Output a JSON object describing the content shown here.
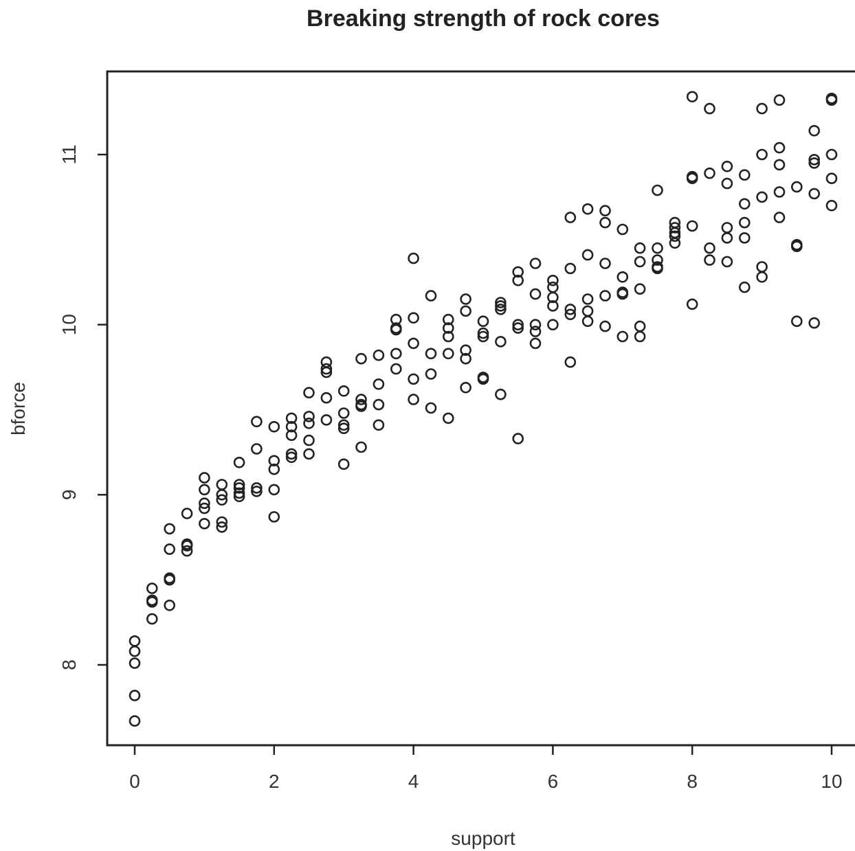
{
  "chart_data": {
    "type": "scatter",
    "title": "Breaking strength of rock cores",
    "xlabel": "support",
    "ylabel": "bforce",
    "xlim": [
      -0.4,
      10.4
    ],
    "ylim": [
      7.55,
      11.5
    ],
    "x_ticks": [
      0,
      2,
      4,
      6,
      8,
      10
    ],
    "y_ticks": [
      8,
      9,
      10,
      11
    ],
    "grid": false,
    "legend": "none",
    "marker": "open-circle",
    "color": "#222222",
    "points": [
      [
        0,
        8.14
      ],
      [
        0,
        8.08
      ],
      [
        0,
        8.01
      ],
      [
        0,
        7.82
      ],
      [
        0,
        7.67
      ],
      [
        0.25,
        8.45
      ],
      [
        0.25,
        8.38
      ],
      [
        0.25,
        8.37
      ],
      [
        0.25,
        8.27
      ],
      [
        0.5,
        8.8
      ],
      [
        0.5,
        8.68
      ],
      [
        0.5,
        8.51
      ],
      [
        0.5,
        8.5
      ],
      [
        0.5,
        8.35
      ],
      [
        0.75,
        8.89
      ],
      [
        0.75,
        8.71
      ],
      [
        0.75,
        8.7
      ],
      [
        0.75,
        8.67
      ],
      [
        1,
        9.1
      ],
      [
        1,
        9.03
      ],
      [
        1,
        8.95
      ],
      [
        1,
        8.92
      ],
      [
        1,
        8.83
      ],
      [
        1.25,
        9.06
      ],
      [
        1.25,
        9.0
      ],
      [
        1.25,
        8.97
      ],
      [
        1.25,
        8.84
      ],
      [
        1.25,
        8.81
      ],
      [
        1.5,
        9.19
      ],
      [
        1.5,
        9.06
      ],
      [
        1.5,
        9.04
      ],
      [
        1.5,
        9.01
      ],
      [
        1.5,
        8.99
      ],
      [
        1.75,
        9.43
      ],
      [
        1.75,
        9.27
      ],
      [
        1.75,
        9.04
      ],
      [
        1.75,
        9.02
      ],
      [
        2,
        9.4
      ],
      [
        2,
        9.2
      ],
      [
        2,
        9.15
      ],
      [
        2,
        9.03
      ],
      [
        2,
        8.87
      ],
      [
        2.25,
        9.45
      ],
      [
        2.25,
        9.4
      ],
      [
        2.25,
        9.35
      ],
      [
        2.25,
        9.24
      ],
      [
        2.25,
        9.22
      ],
      [
        2.5,
        9.6
      ],
      [
        2.5,
        9.46
      ],
      [
        2.5,
        9.42
      ],
      [
        2.5,
        9.32
      ],
      [
        2.5,
        9.24
      ],
      [
        2.75,
        9.78
      ],
      [
        2.75,
        9.74
      ],
      [
        2.75,
        9.72
      ],
      [
        2.75,
        9.57
      ],
      [
        2.75,
        9.44
      ],
      [
        3,
        9.61
      ],
      [
        3,
        9.48
      ],
      [
        3,
        9.41
      ],
      [
        3,
        9.39
      ],
      [
        3,
        9.18
      ],
      [
        3.25,
        9.8
      ],
      [
        3.25,
        9.56
      ],
      [
        3.25,
        9.53
      ],
      [
        3.25,
        9.52
      ],
      [
        3.25,
        9.28
      ],
      [
        3.5,
        9.82
      ],
      [
        3.5,
        9.65
      ],
      [
        3.5,
        9.53
      ],
      [
        3.5,
        9.41
      ],
      [
        3.75,
        10.03
      ],
      [
        3.75,
        9.98
      ],
      [
        3.75,
        9.97
      ],
      [
        3.75,
        9.83
      ],
      [
        3.75,
        9.74
      ],
      [
        4,
        10.39
      ],
      [
        4,
        10.04
      ],
      [
        4,
        9.89
      ],
      [
        4,
        9.68
      ],
      [
        4,
        9.56
      ],
      [
        4.25,
        10.17
      ],
      [
        4.25,
        9.83
      ],
      [
        4.25,
        9.71
      ],
      [
        4.25,
        9.51
      ],
      [
        4.5,
        10.03
      ],
      [
        4.5,
        9.98
      ],
      [
        4.5,
        9.93
      ],
      [
        4.5,
        9.83
      ],
      [
        4.5,
        9.45
      ],
      [
        4.75,
        10.15
      ],
      [
        4.75,
        10.08
      ],
      [
        4.75,
        9.85
      ],
      [
        4.75,
        9.8
      ],
      [
        4.75,
        9.63
      ],
      [
        5,
        10.02
      ],
      [
        5,
        9.95
      ],
      [
        5,
        9.93
      ],
      [
        5,
        9.69
      ],
      [
        5,
        9.68
      ],
      [
        5.25,
        10.13
      ],
      [
        5.25,
        10.11
      ],
      [
        5.25,
        10.09
      ],
      [
        5.25,
        9.9
      ],
      [
        5.25,
        9.59
      ],
      [
        5.5,
        10.31
      ],
      [
        5.5,
        10.26
      ],
      [
        5.5,
        10.0
      ],
      [
        5.5,
        9.98
      ],
      [
        5.5,
        9.33
      ],
      [
        5.75,
        10.36
      ],
      [
        5.75,
        10.18
      ],
      [
        5.75,
        10.0
      ],
      [
        5.75,
        9.96
      ],
      [
        5.75,
        9.89
      ],
      [
        6,
        10.26
      ],
      [
        6,
        10.22
      ],
      [
        6,
        10.16
      ],
      [
        6,
        10.11
      ],
      [
        6,
        10.0
      ],
      [
        6.25,
        10.63
      ],
      [
        6.25,
        10.33
      ],
      [
        6.25,
        10.09
      ],
      [
        6.25,
        10.06
      ],
      [
        6.25,
        9.78
      ],
      [
        6.5,
        10.68
      ],
      [
        6.5,
        10.41
      ],
      [
        6.5,
        10.15
      ],
      [
        6.5,
        10.08
      ],
      [
        6.5,
        10.02
      ],
      [
        6.75,
        10.67
      ],
      [
        6.75,
        10.6
      ],
      [
        6.75,
        10.36
      ],
      [
        6.75,
        10.17
      ],
      [
        6.75,
        9.99
      ],
      [
        7,
        10.56
      ],
      [
        7,
        10.28
      ],
      [
        7,
        10.19
      ],
      [
        7,
        10.18
      ],
      [
        7,
        9.93
      ],
      [
        7.25,
        10.45
      ],
      [
        7.25,
        10.37
      ],
      [
        7.25,
        10.21
      ],
      [
        7.25,
        9.99
      ],
      [
        7.25,
        9.93
      ],
      [
        7.5,
        10.79
      ],
      [
        7.5,
        10.45
      ],
      [
        7.5,
        10.38
      ],
      [
        7.5,
        10.34
      ],
      [
        7.5,
        10.33
      ],
      [
        7.75,
        10.6
      ],
      [
        7.75,
        10.57
      ],
      [
        7.75,
        10.54
      ],
      [
        7.75,
        10.52
      ],
      [
        7.75,
        10.48
      ],
      [
        8,
        11.34
      ],
      [
        8,
        10.87
      ],
      [
        8,
        10.86
      ],
      [
        8,
        10.58
      ],
      [
        8,
        10.12
      ],
      [
        8.25,
        11.27
      ],
      [
        8.25,
        10.89
      ],
      [
        8.25,
        10.45
      ],
      [
        8.25,
        10.38
      ],
      [
        8.5,
        10.93
      ],
      [
        8.5,
        10.83
      ],
      [
        8.5,
        10.57
      ],
      [
        8.5,
        10.51
      ],
      [
        8.5,
        10.37
      ],
      [
        8.75,
        10.88
      ],
      [
        8.75,
        10.71
      ],
      [
        8.75,
        10.6
      ],
      [
        8.75,
        10.51
      ],
      [
        8.75,
        10.22
      ],
      [
        9,
        11.27
      ],
      [
        9,
        11.0
      ],
      [
        9,
        10.75
      ],
      [
        9,
        10.34
      ],
      [
        9,
        10.28
      ],
      [
        9.25,
        11.32
      ],
      [
        9.25,
        11.04
      ],
      [
        9.25,
        10.94
      ],
      [
        9.25,
        10.78
      ],
      [
        9.25,
        10.63
      ],
      [
        9.5,
        10.81
      ],
      [
        9.5,
        10.47
      ],
      [
        9.5,
        10.46
      ],
      [
        9.5,
        10.02
      ],
      [
        9.75,
        11.14
      ],
      [
        9.75,
        10.97
      ],
      [
        9.75,
        10.95
      ],
      [
        9.75,
        10.77
      ],
      [
        9.75,
        10.01
      ],
      [
        10,
        11.33
      ],
      [
        10,
        11.32
      ],
      [
        10,
        11.0
      ],
      [
        10,
        10.86
      ],
      [
        10,
        10.7
      ]
    ]
  }
}
